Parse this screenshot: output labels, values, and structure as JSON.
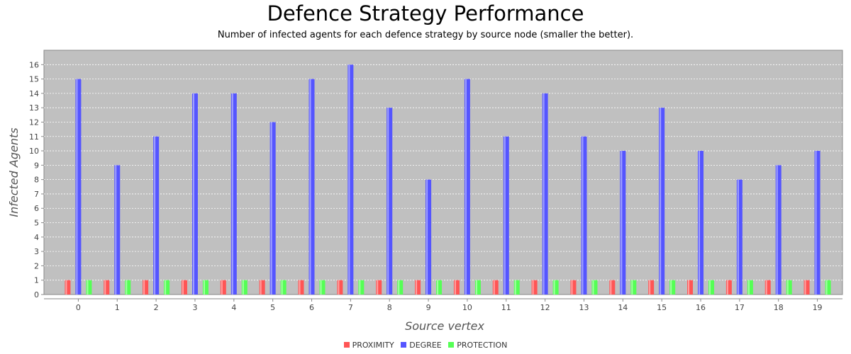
{
  "chart_data": {
    "type": "bar",
    "title": "Defence Strategy Performance",
    "subtitle": "Number of infected agents for each defence strategy by source node (smaller the better).",
    "xlabel": "Source vertex",
    "ylabel": "Infected Agents",
    "ylim": [
      0,
      17
    ],
    "yticks": [
      0,
      1,
      2,
      3,
      4,
      5,
      6,
      7,
      8,
      9,
      10,
      11,
      12,
      13,
      14,
      15,
      16
    ],
    "categories": [
      "0",
      "1",
      "2",
      "3",
      "4",
      "5",
      "6",
      "7",
      "8",
      "9",
      "10",
      "11",
      "12",
      "13",
      "14",
      "15",
      "16",
      "17",
      "18",
      "19"
    ],
    "series": [
      {
        "name": "PROXIMITY",
        "color": "#ff5555",
        "values": [
          1,
          1,
          1,
          1,
          1,
          1,
          1,
          1,
          1,
          1,
          1,
          1,
          1,
          1,
          1,
          1,
          1,
          1,
          1,
          1
        ]
      },
      {
        "name": "DEGREE",
        "color": "#5555ff",
        "values": [
          15,
          9,
          11,
          14,
          14,
          12,
          15,
          16,
          13,
          8,
          15,
          11,
          14,
          11,
          10,
          13,
          10,
          8,
          9,
          10
        ]
      },
      {
        "name": "PROTECTION",
        "color": "#55ff55",
        "values": [
          1,
          1,
          1,
          1,
          1,
          1,
          1,
          1,
          1,
          1,
          1,
          1,
          1,
          1,
          1,
          1,
          1,
          1,
          1,
          1
        ]
      }
    ],
    "grid": true,
    "legend": "bottom",
    "plot_background": "#c0c0c0"
  }
}
